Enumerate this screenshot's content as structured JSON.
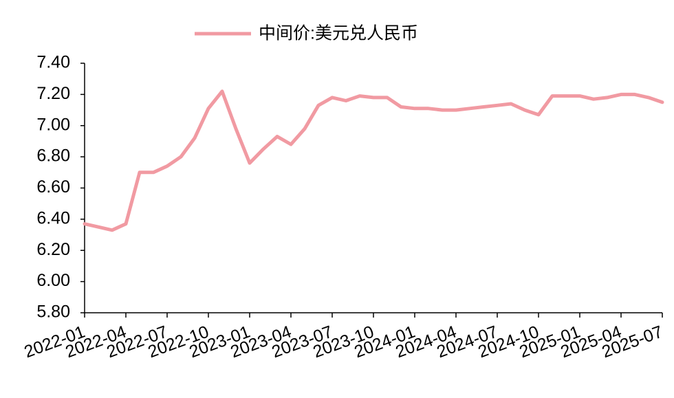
{
  "chart_data": {
    "type": "line",
    "categories": [
      "2022-01",
      null,
      null,
      "2022-04",
      null,
      null,
      "2022-07",
      null,
      null,
      "2022-10",
      null,
      null,
      "2023-01",
      null,
      null,
      "2023-04",
      null,
      null,
      "2023-07",
      null,
      null,
      "2023-10",
      null,
      null,
      "2024-01",
      null,
      null,
      "2024-04",
      null,
      null,
      "2024-07",
      null,
      null,
      "2024-10",
      null,
      null,
      "2025-01",
      null,
      null,
      "2025-04",
      null,
      null,
      "2025-07"
    ],
    "series": [
      {
        "name": "中间价:美元兑人民币",
        "color": "#f19aa2",
        "values": [
          6.37,
          6.35,
          6.33,
          6.37,
          6.7,
          6.7,
          6.74,
          6.8,
          6.92,
          7.11,
          7.22,
          6.98,
          6.76,
          6.85,
          6.93,
          6.88,
          6.98,
          7.13,
          7.18,
          7.16,
          7.19,
          7.18,
          7.18,
          7.12,
          7.11,
          7.11,
          7.1,
          7.1,
          7.11,
          7.12,
          7.13,
          7.14,
          7.1,
          7.07,
          7.19,
          7.19,
          7.19,
          7.17,
          7.18,
          7.2,
          7.2,
          7.18,
          7.15
        ]
      }
    ],
    "ylim": [
      5.8,
      7.4
    ],
    "yticks": [
      {
        "value": 5.8,
        "label": "5.80"
      },
      {
        "value": 6.0,
        "label": "6.00"
      },
      {
        "value": 6.2,
        "label": "6.20"
      },
      {
        "value": 6.4,
        "label": "6.40"
      },
      {
        "value": 6.6,
        "label": "6.60"
      },
      {
        "value": 6.8,
        "label": "6.80"
      },
      {
        "value": 7.0,
        "label": "7.00"
      },
      {
        "value": 7.2,
        "label": "7.20"
      },
      {
        "value": 7.4,
        "label": "7.40"
      }
    ],
    "grid": false,
    "legend": "top"
  }
}
